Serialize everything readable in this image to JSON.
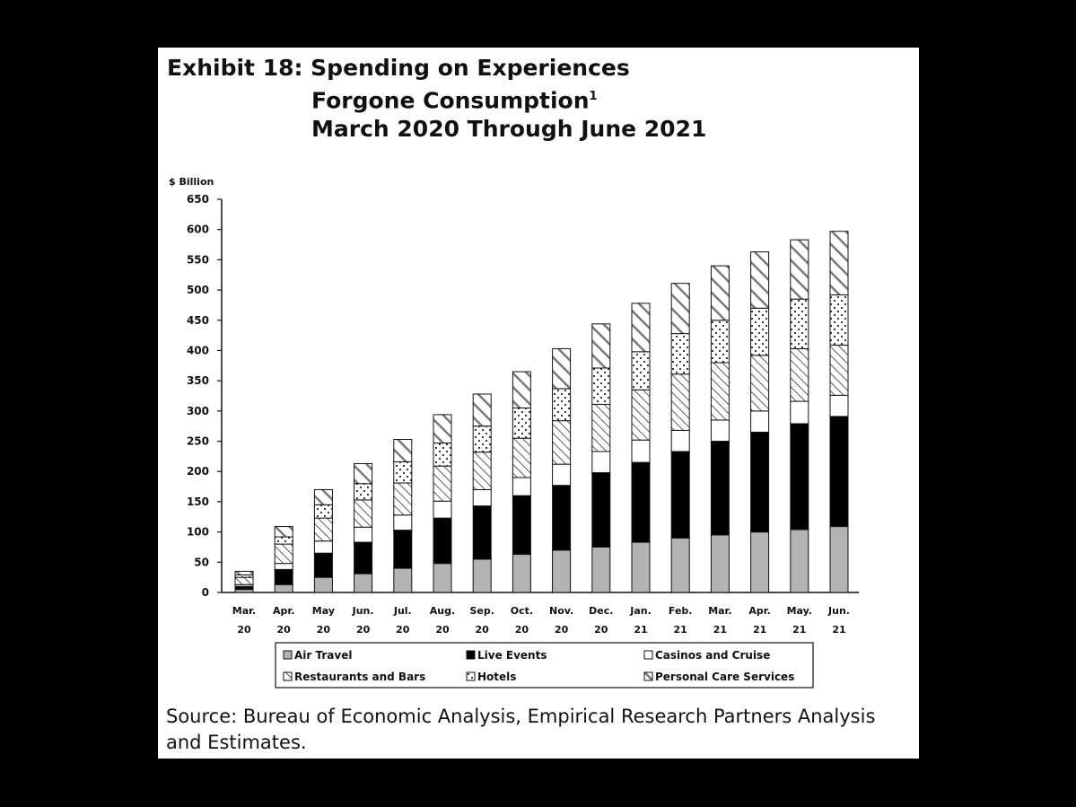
{
  "header": {
    "line1": "Exhibit 18: Spending on Experiences",
    "line2": "Forgone Consumption",
    "line2_sup": "1",
    "line3": "March 2020 Through June 2021"
  },
  "source": "Source: Bureau of Economic Analysis, Empirical Research Partners Analysis and Estimates.",
  "colors": {
    "air_travel": "#b3b3b3",
    "live_events": "#000000",
    "casinos": "#ffffff",
    "restaurants": "#ffffff",
    "hotels": "#ffffff",
    "personal_care": "#ffffff"
  },
  "chart_data": {
    "type": "bar",
    "stacked": true,
    "unit_label": "$ Billion",
    "ylim": [
      0,
      650
    ],
    "yticks": [
      0,
      50,
      100,
      150,
      200,
      250,
      300,
      350,
      400,
      450,
      500,
      550,
      600,
      650
    ],
    "grid": false,
    "legend_position": "bottom",
    "categories": [
      [
        "Mar.",
        "20"
      ],
      [
        "Apr.",
        "20"
      ],
      [
        "May",
        "20"
      ],
      [
        "Jun.",
        "20"
      ],
      [
        "Jul.",
        "20"
      ],
      [
        "Aug.",
        "20"
      ],
      [
        "Sep.",
        "20"
      ],
      [
        "Oct.",
        "20"
      ],
      [
        "Nov.",
        "20"
      ],
      [
        "Dec.",
        "20"
      ],
      [
        "Jan.",
        "21"
      ],
      [
        "Feb.",
        "21"
      ],
      [
        "Mar.",
        "21"
      ],
      [
        "Apr.",
        "21"
      ],
      [
        "May.",
        "21"
      ],
      [
        "Jun.",
        "21"
      ]
    ],
    "series": [
      {
        "name": "Air Travel",
        "pattern": "gray",
        "values": [
          5,
          13,
          25,
          31,
          40,
          48,
          55,
          63,
          70,
          75,
          83,
          90,
          95,
          100,
          104,
          109
        ]
      },
      {
        "name": "Live Events",
        "pattern": "black",
        "values": [
          5,
          25,
          40,
          52,
          63,
          75,
          88,
          97,
          107,
          123,
          132,
          143,
          155,
          165,
          175,
          182
        ]
      },
      {
        "name": "Casinos and Cruise",
        "pattern": "white",
        "values": [
          3,
          10,
          20,
          25,
          25,
          28,
          27,
          30,
          35,
          35,
          37,
          35,
          35,
          35,
          37,
          35
        ]
      },
      {
        "name": "Restaurants and Bars",
        "pattern": "diag",
        "values": [
          12,
          32,
          38,
          45,
          53,
          58,
          62,
          65,
          72,
          78,
          83,
          93,
          95,
          92,
          87,
          83
        ]
      },
      {
        "name": "Hotels",
        "pattern": "dots",
        "values": [
          4,
          12,
          22,
          27,
          35,
          38,
          43,
          50,
          53,
          60,
          63,
          67,
          70,
          78,
          82,
          83
        ]
      },
      {
        "name": "Personal Care Services",
        "pattern": "diag-thick",
        "values": [
          6,
          17,
          25,
          33,
          37,
          47,
          53,
          60,
          66,
          73,
          80,
          83,
          90,
          93,
          98,
          105
        ]
      }
    ]
  }
}
